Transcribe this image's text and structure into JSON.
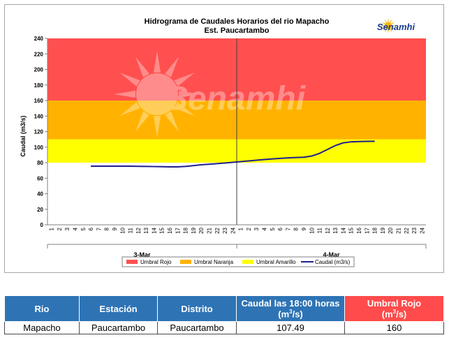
{
  "chart_data": {
    "type": "line",
    "title": "Hidrograma de Caudales Horarios del rio Mapacho",
    "subtitle": "Est. Paucartambo",
    "ylabel": "Caudal  (m3/s)",
    "xlabel": "",
    "ylim": [
      0,
      240
    ],
    "yticks": [
      "0",
      "20",
      "40",
      "60",
      "80",
      "100",
      "120",
      "140",
      "160",
      "180",
      "200",
      "220",
      "240"
    ],
    "hours": [
      "1",
      "2",
      "3",
      "4",
      "5",
      "6",
      "7",
      "8",
      "9",
      "10",
      "11",
      "12",
      "13",
      "14",
      "15",
      "16",
      "17",
      "18",
      "19",
      "20",
      "21",
      "22",
      "23",
      "24"
    ],
    "days": [
      "3-Mar",
      "4-Mar"
    ],
    "grid": false,
    "legend_position": "bottom",
    "bands": [
      {
        "name": "Umbral Rojo",
        "from": 160,
        "to": 240,
        "color": "#ff4f4f"
      },
      {
        "name": "Umbral Naranja",
        "from": 110,
        "to": 160,
        "color": "#ffb300"
      },
      {
        "name": "Umbral Amarillo",
        "from": 80,
        "to": 110,
        "color": "#ffff00"
      }
    ],
    "series": [
      {
        "name": "Caudal (m3/s)",
        "color": "#1f1f8f",
        "points": [
          [
            6,
            75.5
          ],
          [
            7,
            75.5
          ],
          [
            8,
            75.5
          ],
          [
            9,
            75.5
          ],
          [
            10,
            75.5
          ],
          [
            11,
            75.5
          ],
          [
            12,
            75.3
          ],
          [
            13,
            75.2
          ],
          [
            14,
            75.0
          ],
          [
            15,
            74.8
          ],
          [
            16,
            74.6
          ],
          [
            17,
            74.6
          ],
          [
            18,
            75.2
          ],
          [
            19,
            76.2
          ],
          [
            20,
            77.3
          ],
          [
            21,
            78.0
          ],
          [
            22,
            78.8
          ],
          [
            23,
            79.6
          ],
          [
            24,
            80.4
          ],
          [
            25,
            81.3
          ],
          [
            26,
            82.2
          ],
          [
            27,
            83.1
          ],
          [
            28,
            84.0
          ],
          [
            29,
            84.8
          ],
          [
            30,
            85.5
          ],
          [
            31,
            86.2
          ],
          [
            32,
            86.6
          ],
          [
            33,
            87.0
          ],
          [
            34,
            88.5
          ],
          [
            35,
            92
          ],
          [
            36,
            97
          ],
          [
            37,
            102
          ],
          [
            38,
            105.5
          ],
          [
            39,
            106.8
          ],
          [
            40,
            107.2
          ],
          [
            41,
            107.4
          ],
          [
            42,
            107.49
          ]
        ]
      }
    ]
  },
  "watermark": "Senamhi",
  "logo": {
    "text": "Senamhi",
    "sun_color": "#f4b400",
    "text_color": "#1a3d8f"
  },
  "table": {
    "headers": [
      "Rio",
      "Estación",
      "Distrito",
      "Caudal las 18:00 horas",
      "Umbral Rojo"
    ],
    "unit": "(m",
    "unit_exp": "3",
    "unit_tail": "/s)",
    "row": [
      "Mapacho",
      "Paucartambo",
      "Paucartambo",
      "107.49",
      "160"
    ]
  }
}
